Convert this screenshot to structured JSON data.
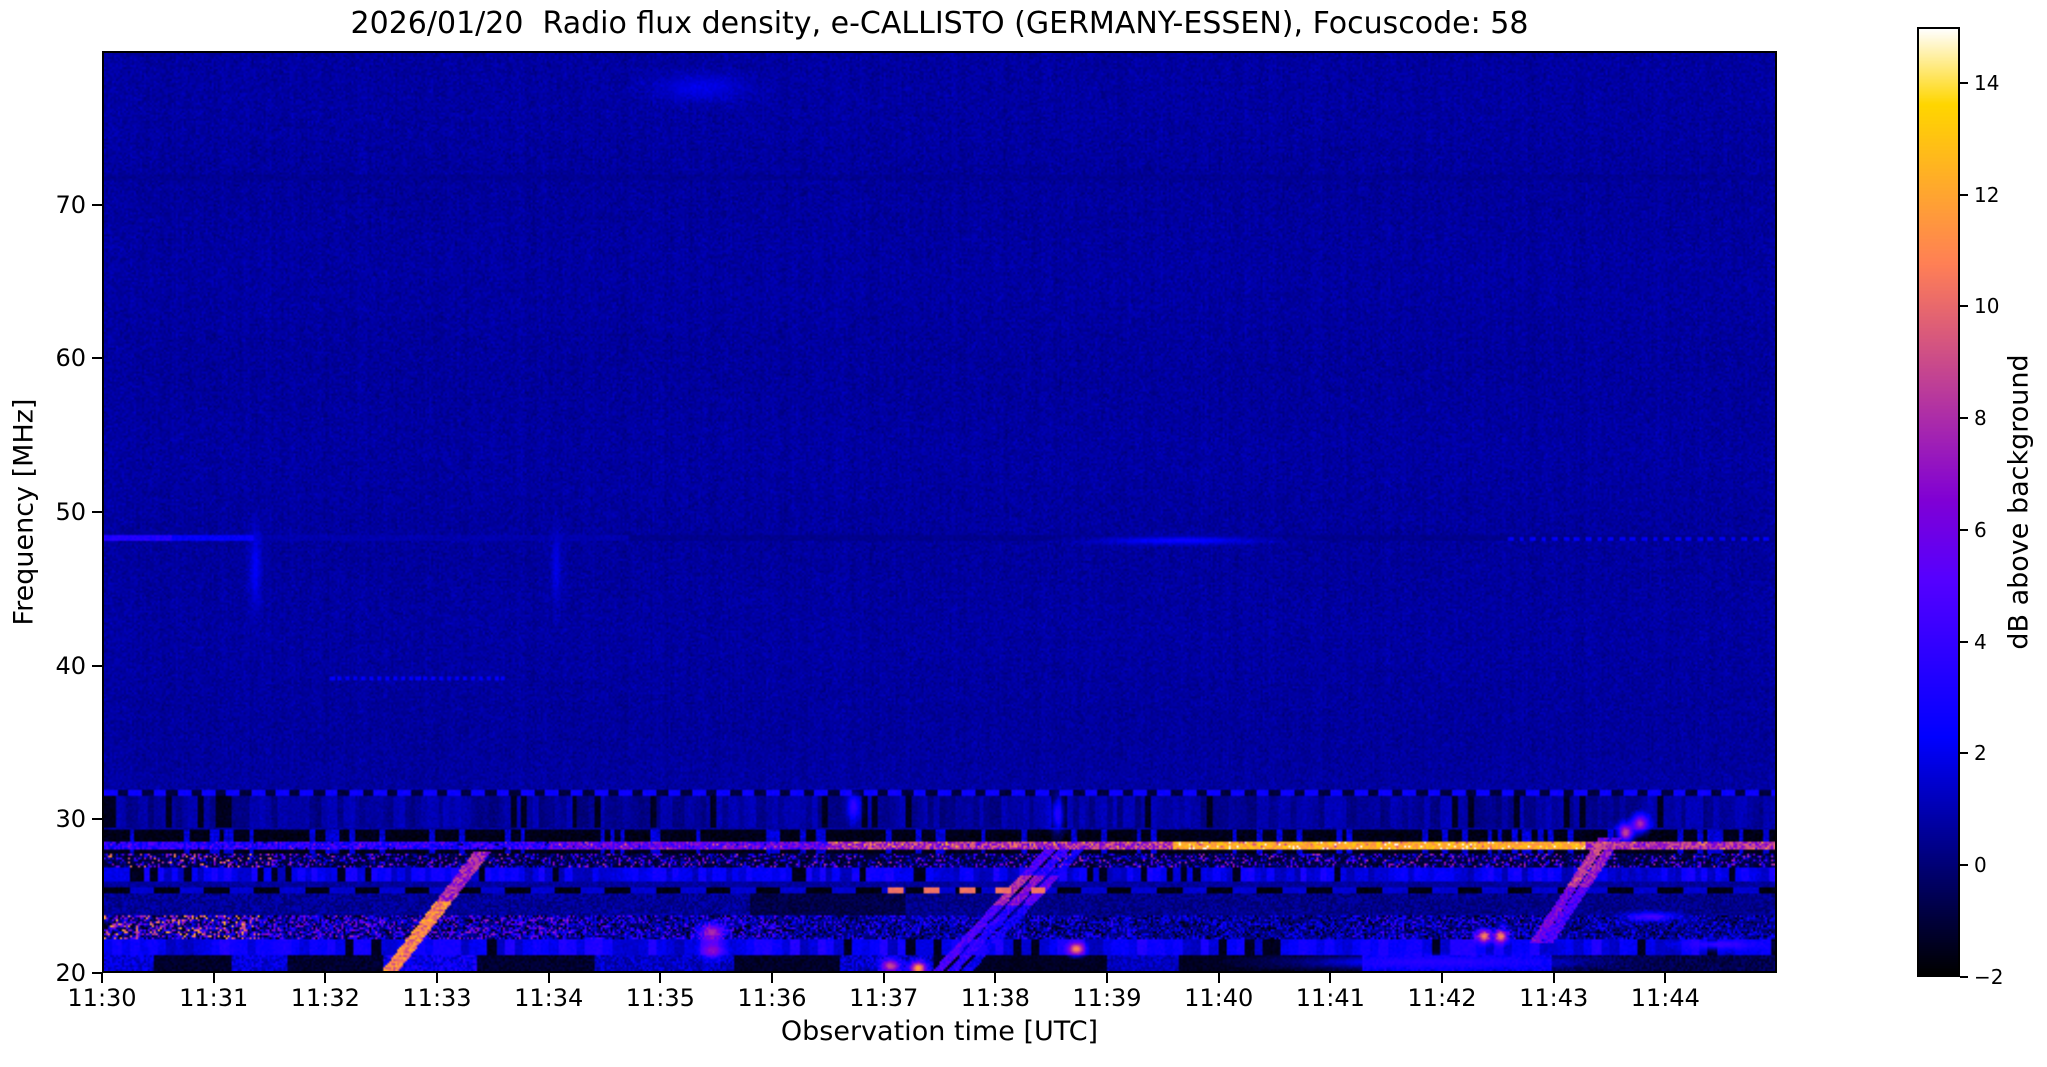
{
  "chart_data": {
    "type": "heatmap",
    "title": "2026/01/20  Radio flux density, e-CALLISTO (GERMANY-ESSEN), Focuscode: 58",
    "xlabel": "Observation time [UTC]",
    "ylabel": "Frequency [MHz]",
    "x_ticks": [
      {
        "minute": 0,
        "label": "11:30"
      },
      {
        "minute": 1,
        "label": "11:31"
      },
      {
        "minute": 2,
        "label": "11:32"
      },
      {
        "minute": 3,
        "label": "11:33"
      },
      {
        "minute": 4,
        "label": "11:34"
      },
      {
        "minute": 5,
        "label": "11:35"
      },
      {
        "minute": 6,
        "label": "11:36"
      },
      {
        "minute": 7,
        "label": "11:37"
      },
      {
        "minute": 8,
        "label": "11:38"
      },
      {
        "minute": 9,
        "label": "11:39"
      },
      {
        "minute": 10,
        "label": "11:40"
      },
      {
        "minute": 11,
        "label": "11:41"
      },
      {
        "minute": 12,
        "label": "11:42"
      },
      {
        "minute": 13,
        "label": "11:43"
      },
      {
        "minute": 14,
        "label": "11:44"
      }
    ],
    "time_span_minutes": 15,
    "ylim": [
      20,
      80
    ],
    "y_ticks": [
      {
        "v": 70,
        "label": "70"
      },
      {
        "v": 60,
        "label": "60"
      },
      {
        "v": 50,
        "label": "50"
      },
      {
        "v": 40,
        "label": "40"
      },
      {
        "v": 30,
        "label": "30"
      },
      {
        "v": 20,
        "label": "20"
      }
    ],
    "grid": false,
    "colorbar": {
      "label": "dB above background",
      "colormap": "gnuplot2",
      "vmin": -2,
      "vmax": 15,
      "ticks": [
        {
          "v": 14,
          "label": "14"
        },
        {
          "v": 12,
          "label": "12"
        },
        {
          "v": 10,
          "label": "10"
        },
        {
          "v": 8,
          "label": "8"
        },
        {
          "v": 6,
          "label": "6"
        },
        {
          "v": 4,
          "label": "4"
        },
        {
          "v": 2,
          "label": "2"
        },
        {
          "v": 0,
          "label": "0"
        },
        {
          "v": -2,
          "label": "−2"
        }
      ]
    },
    "background_level_db": 0.65,
    "bands": [
      {
        "name": "faint-dark-line-72MHz",
        "type": "solid",
        "f": [
          71.65,
          72.05
        ],
        "base": 0.45,
        "amp": 0.3
      },
      {
        "name": "line-48MHz",
        "type": "segments",
        "f": [
          48.05,
          48.45
        ],
        "segments": [
          [
            0,
            0.6,
            3.3,
            0.6
          ],
          [
            0.6,
            1.35,
            2.3,
            0.5
          ],
          [
            1.35,
            4.7,
            0.9,
            0.3
          ],
          [
            4.7,
            12.6,
            0.35,
            0.25
          ]
        ]
      },
      {
        "name": "line-48MHz-dotted",
        "type": "dashes",
        "f": [
          48.05,
          48.4
        ],
        "t": [
          12.6,
          15
        ],
        "period": 0.1,
        "duty": 0.5,
        "on": 2.1,
        "off": null
      },
      {
        "name": "line-39MHz-dotted",
        "type": "dashes",
        "f": [
          38.95,
          39.25
        ],
        "t": [
          2.0,
          3.6
        ],
        "period": 0.07,
        "duty": 0.55,
        "on": 2.2,
        "off": null
      },
      {
        "name": "striped-zone-30MHz",
        "type": "stripes",
        "f": [
          29.35,
          31.4
        ],
        "base": 0.55,
        "amp": 0.8,
        "period": 0.05,
        "blackProb": 0.08
      },
      {
        "name": "rfi-dashes-31.6MHz",
        "type": "dashes",
        "f": [
          31.42,
          31.78
        ],
        "period": 0.22,
        "duty": 0.55,
        "on": 2.6,
        "off": -1.0
      },
      {
        "name": "black-band-28MHz",
        "type": "blackTicks",
        "f": [
          27.62,
          29.25
        ],
        "base": -1.6,
        "amp": 0.4,
        "tickProb": 0.2,
        "tickVal": 1.6,
        "tickPeriod": 0.045
      },
      {
        "name": "carrier-28.2MHz",
        "type": "segments",
        "f": [
          27.97,
          28.42
        ],
        "spike": 0.09,
        "dip": 0.05,
        "segments": [
          [
            0,
            4,
            3.5,
            2.2
          ],
          [
            4,
            6.5,
            5.5,
            2.6
          ],
          [
            6.5,
            9.6,
            8.0,
            3.0
          ],
          [
            9.6,
            13.3,
            12.3,
            1.5
          ],
          [
            13.3,
            15,
            8.0,
            2.4
          ]
        ]
      },
      {
        "name": "speckle-band-27MHz",
        "type": "speckle",
        "f": [
          26.72,
          27.62
        ],
        "base": -1.1,
        "exp": 4,
        "blackProb": 0.12,
        "segments": [
          [
            0,
            1.5,
            13
          ],
          [
            1.5,
            15,
            9.5
          ]
        ]
      },
      {
        "name": "striped-band-26MHz",
        "type": "stripes",
        "f": [
          25.82,
          26.72
        ],
        "base": 1.9,
        "amp": 1.5,
        "period": 0.06,
        "blackProb": 0.12
      },
      {
        "name": "dashed-line-25MHz",
        "type": "dashes",
        "f": [
          25.02,
          25.48
        ],
        "period": 0.45,
        "duty": 0.5,
        "on": -1.7,
        "off": 1.5
      },
      {
        "name": "orange-dashes-25MHz",
        "type": "dashes",
        "f": [
          25.02,
          25.42
        ],
        "t": [
          7.0,
          8.45
        ],
        "period": 0.32,
        "duty": 0.45,
        "on": 10.3,
        "off": null
      },
      {
        "name": "texture-24MHz",
        "type": "segments",
        "f": [
          23.58,
          25.02
        ],
        "segments": [
          [
            0,
            5.8,
            0.5,
            1.0
          ],
          [
            5.8,
            7.2,
            -0.8,
            0.7
          ],
          [
            7.2,
            15,
            0.3,
            0.9
          ]
        ]
      },
      {
        "name": "bright-band-22.8MHz",
        "type": "speckle",
        "f": [
          22.12,
          23.58
        ],
        "base": -0.3,
        "exp": 2,
        "blackProb": 0.15,
        "segments": [
          [
            0,
            1.4,
            13
          ],
          [
            1.4,
            4.2,
            8
          ],
          [
            4.2,
            6.2,
            6
          ],
          [
            6.2,
            9.3,
            4.5
          ],
          [
            9.3,
            11.2,
            3.5
          ],
          [
            11.2,
            13.1,
            5
          ],
          [
            13.1,
            15,
            3.5
          ]
        ]
      },
      {
        "name": "striped-band-21.5MHz",
        "type": "stripes",
        "f": [
          21.02,
          22.12
        ],
        "base": 2.1,
        "amp": 1.6,
        "period": 0.08,
        "blackProb": 0.1
      },
      {
        "name": "bottom-band-20.5MHz",
        "type": "segments",
        "f": [
          20,
          21.02
        ],
        "segments": [
          [
            0,
            0.45,
            1.6,
            1.4
          ],
          [
            0.45,
            1.15,
            -1.3,
            0.5
          ],
          [
            1.15,
            1.65,
            1.8,
            1.4
          ],
          [
            1.65,
            2.5,
            -1.2,
            0.6
          ],
          [
            2.5,
            3.35,
            2.2,
            2.0
          ],
          [
            3.35,
            4.4,
            -1.2,
            0.6
          ],
          [
            4.4,
            5.65,
            1.3,
            1.4
          ],
          [
            5.65,
            6.6,
            -1.3,
            0.5
          ],
          [
            6.6,
            7.45,
            1.4,
            1.8
          ],
          [
            7.45,
            9.0,
            -1.4,
            0.4
          ],
          [
            9.0,
            9.65,
            1.2,
            1.0
          ],
          [
            9.65,
            11.3,
            -1.4,
            0.4
          ],
          [
            11.3,
            13.0,
            2.0,
            1.2
          ],
          [
            13.0,
            15,
            -0.7,
            0.9
          ]
        ]
      }
    ],
    "drifting_bursts": [
      {
        "name": "burst-11:33",
        "t": [
          2.56,
          3.38
        ],
        "f": [
          20,
          27.7
        ],
        "width_min": 0.075,
        "value": 7,
        "amp": 4,
        "hot": [
          20,
          24.5,
          3.2
        ],
        "streaks": 1,
        "spacing": 0
      },
      {
        "name": "burst-11:38",
        "t": [
          7.5,
          8.5
        ],
        "f": [
          20.2,
          28.1
        ],
        "width_min": 0.05,
        "value": 4.5,
        "amp": 2.5,
        "hot": [
          24.3,
          26.3,
          3
        ],
        "streaks": 3,
        "spacing": 0.13
      },
      {
        "name": "burst-11:43",
        "t": [
          12.85,
          13.45
        ],
        "f": [
          22,
          28.6
        ],
        "width_min": 0.05,
        "value": 5.5,
        "amp": 3,
        "hot": [
          25.5,
          28.3,
          2.5
        ],
        "streaks": 2,
        "spacing": 0.11
      }
    ],
    "spots": [
      {
        "t": 9.65,
        "f": 48.2,
        "v": 2.6,
        "rt": 0.5,
        "rf": 0.18
      },
      {
        "t": 1.35,
        "f": 46.3,
        "v": 2.2,
        "rt": 0.035,
        "rf": 1.9
      },
      {
        "t": 4.05,
        "f": 46.4,
        "v": 1.9,
        "rt": 0.03,
        "rf": 1.7
      },
      {
        "t": 5.35,
        "f": 77.8,
        "v": 1.9,
        "rt": 0.28,
        "rf": 0.6
      },
      {
        "t": 5.45,
        "f": 22.6,
        "v": 8,
        "rt": 0.08,
        "rf": 0.4
      },
      {
        "t": 5.45,
        "f": 21.4,
        "v": 7,
        "rt": 0.07,
        "rf": 0.35
      },
      {
        "t": 8.72,
        "f": 21.5,
        "v": 11,
        "rt": 0.05,
        "rf": 0.28
      },
      {
        "t": 7.05,
        "f": 20.4,
        "v": 9,
        "rt": 0.06,
        "rf": 0.3
      },
      {
        "t": 7.3,
        "f": 20.25,
        "v": 12,
        "rt": 0.05,
        "rf": 0.3
      },
      {
        "t": 6.72,
        "f": 30.8,
        "v": 4,
        "rt": 0.04,
        "rf": 0.55
      },
      {
        "t": 8.55,
        "f": 30.3,
        "v": 3.5,
        "rt": 0.04,
        "rf": 0.8
      },
      {
        "t": 12.38,
        "f": 22.35,
        "v": 11,
        "rt": 0.045,
        "rf": 0.3
      },
      {
        "t": 12.53,
        "f": 22.35,
        "v": 11,
        "rt": 0.045,
        "rf": 0.3
      },
      {
        "t": 13.65,
        "f": 29.1,
        "v": 9,
        "rt": 0.05,
        "rf": 0.4
      },
      {
        "t": 13.78,
        "f": 29.7,
        "v": 8,
        "rt": 0.05,
        "rf": 0.4
      },
      {
        "t": 13.88,
        "f": 23.6,
        "v": 4.5,
        "rt": 0.16,
        "rf": 0.22
      },
      {
        "t": 11.95,
        "f": 20.65,
        "v": 3.5,
        "rt": 0.8,
        "rf": 0.28
      },
      {
        "t": 14.5,
        "f": 21.8,
        "v": 4.2,
        "rt": 0.22,
        "rf": 0.22
      }
    ]
  }
}
